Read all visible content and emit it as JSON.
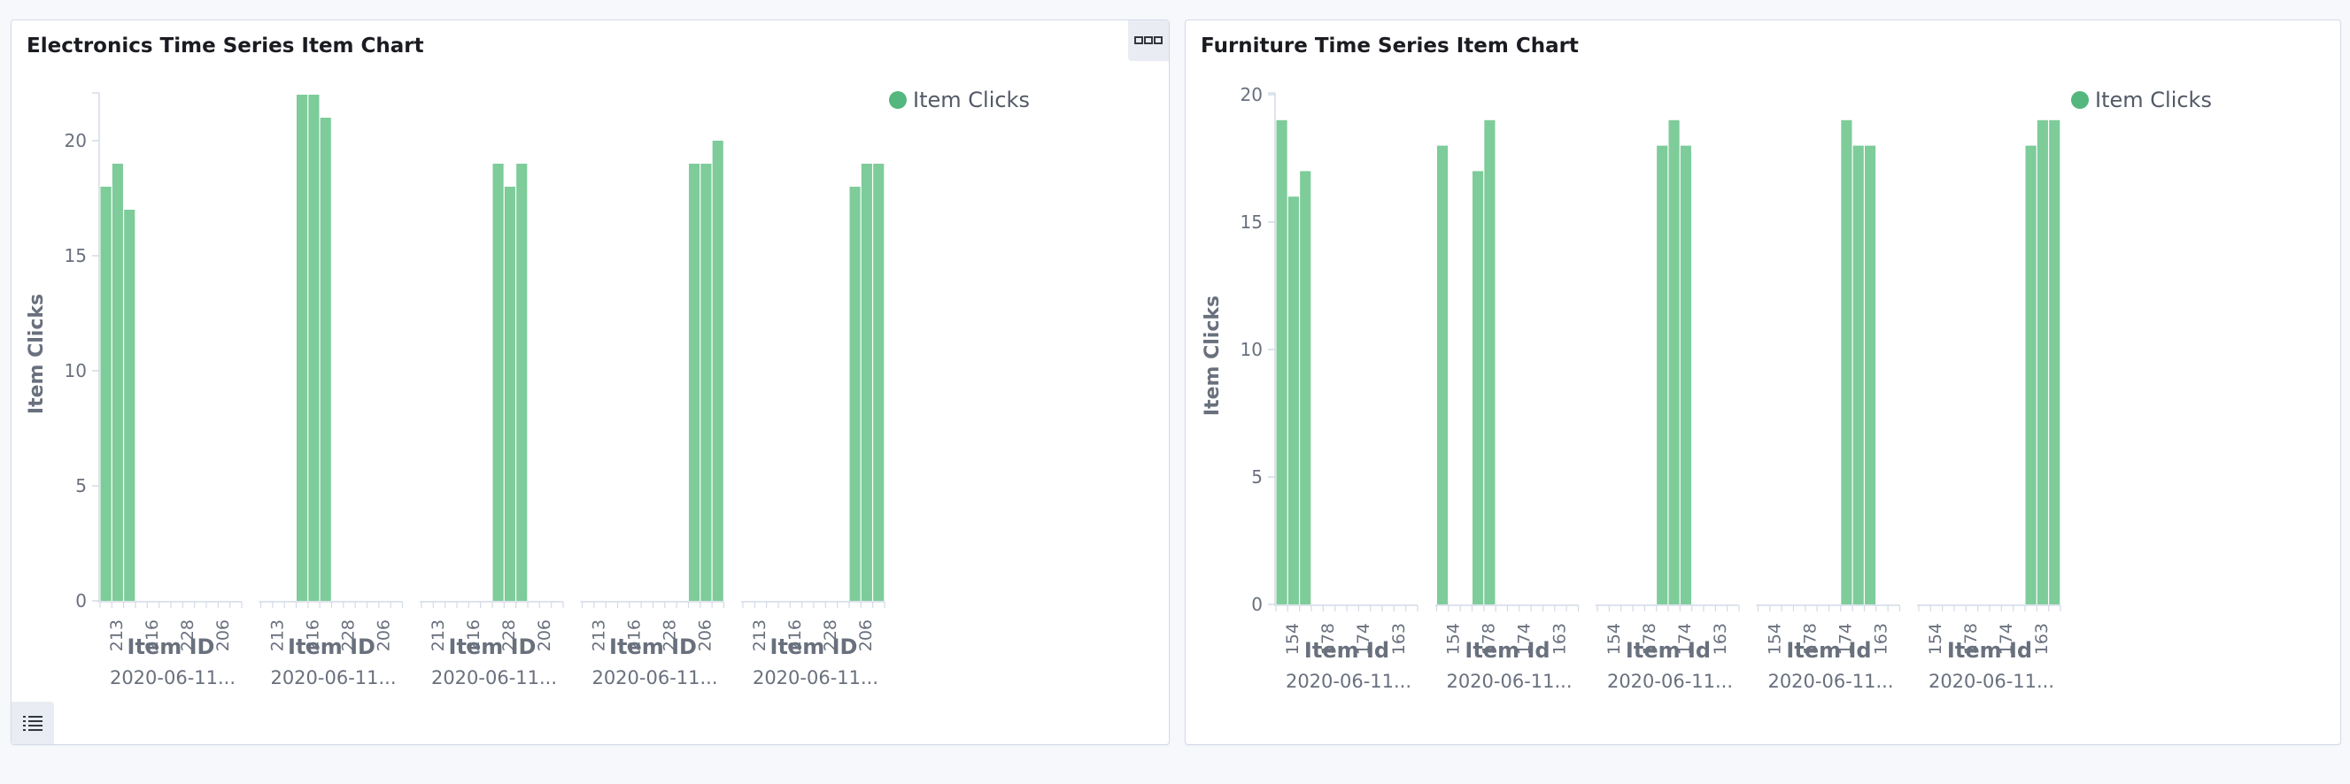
{
  "panels": [
    {
      "title": "Electronics Time Series Item Chart",
      "menu_icon": "options-menu-icon",
      "legend_toggle_icon": "legend-list-icon",
      "chart_data": {
        "type": "bar",
        "ylabel": "Item Clicks",
        "xlabel": "Item ID",
        "ylim": [
          0,
          22
        ],
        "yticks": [
          0,
          5,
          10,
          15,
          20
        ],
        "legend": {
          "label": "Item Clicks",
          "position": "top-right"
        },
        "colors": {
          "bar": "#7dcc9a",
          "legend_dot": "#54b77d"
        },
        "groups": [
          {
            "label": "2020-06-11...",
            "tick_labels": [
              "213",
              "216",
              "228",
              "206"
            ],
            "values": [
              18,
              19,
              17,
              0,
              0,
              0,
              0,
              0,
              0,
              0,
              0,
              0
            ]
          },
          {
            "label": "2020-06-11...",
            "tick_labels": [
              "213",
              "216",
              "228",
              "206"
            ],
            "values": [
              0,
              0,
              0,
              22,
              22,
              21,
              0,
              0,
              0,
              0,
              0,
              0
            ]
          },
          {
            "label": "2020-06-11...",
            "tick_labels": [
              "213",
              "216",
              "228",
              "206"
            ],
            "values": [
              0,
              0,
              0,
              0,
              0,
              0,
              19,
              18,
              19,
              0,
              0,
              0
            ]
          },
          {
            "label": "2020-06-11...",
            "tick_labels": [
              "213",
              "216",
              "228",
              "206"
            ],
            "values": [
              0,
              0,
              0,
              0,
              0,
              0,
              0,
              0,
              0,
              19,
              19,
              20
            ]
          },
          {
            "label": "2020-06-11...",
            "tick_labels": [
              "213",
              "216",
              "228",
              "206"
            ],
            "values": [
              0,
              0,
              0,
              0,
              0,
              0,
              0,
              0,
              0,
              18,
              19,
              19
            ]
          }
        ]
      }
    },
    {
      "title": "Furniture Time Series Item Chart",
      "chart_data": {
        "type": "bar",
        "ylabel": "Item Clicks",
        "xlabel": "Item Id",
        "ylim": [
          0,
          20
        ],
        "yticks": [
          0,
          5,
          10,
          15,
          20
        ],
        "legend": {
          "label": "Item Clicks",
          "position": "top-right"
        },
        "colors": {
          "bar": "#7dcc9a",
          "legend_dot": "#54b77d"
        },
        "groups": [
          {
            "label": "2020-06-11...",
            "tick_labels": [
              "154",
              "178",
              "174",
              "163"
            ],
            "values": [
              19,
              16,
              17,
              0,
              0,
              0,
              0,
              0,
              0,
              0,
              0,
              0
            ]
          },
          {
            "label": "2020-06-11...",
            "tick_labels": [
              "154",
              "178",
              "174",
              "163"
            ],
            "values": [
              18,
              0,
              0,
              17,
              19,
              0,
              0,
              0,
              0,
              0,
              0,
              0
            ]
          },
          {
            "label": "2020-06-11...",
            "tick_labels": [
              "154",
              "178",
              "174",
              "163"
            ],
            "values": [
              0,
              0,
              0,
              0,
              0,
              18,
              19,
              18,
              0,
              0,
              0,
              0
            ]
          },
          {
            "label": "2020-06-11...",
            "tick_labels": [
              "154",
              "178",
              "174",
              "163"
            ],
            "values": [
              0,
              0,
              0,
              0,
              0,
              0,
              0,
              19,
              18,
              18,
              0,
              0
            ]
          },
          {
            "label": "2020-06-11...",
            "tick_labels": [
              "154",
              "178",
              "174",
              "163"
            ],
            "values": [
              0,
              0,
              0,
              0,
              0,
              0,
              0,
              0,
              0,
              18,
              19,
              19
            ]
          }
        ]
      }
    }
  ]
}
